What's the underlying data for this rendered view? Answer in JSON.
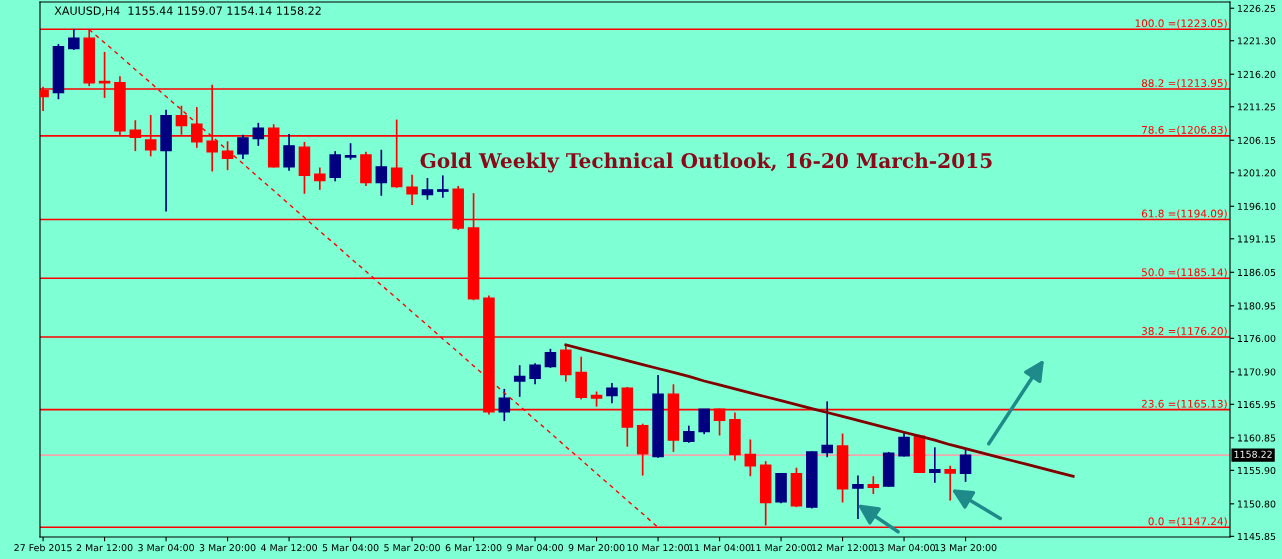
{
  "chart_data": {
    "type": "candlestick",
    "title": "Gold Weekly Technical Outlook, 16-20 March-2015",
    "annotations": [
      "XAUUSD,H4  1155.44 1159.07 1154.14 1158.22",
      "1158.22"
    ],
    "categories": [
      "27 Feb 2015",
      null,
      null,
      null,
      "2 Mar 12:00",
      null,
      null,
      null,
      "3 Mar 04:00",
      null,
      null,
      null,
      "3 Mar 20:00",
      null,
      null,
      null,
      "4 Mar 12:00",
      null,
      null,
      null,
      "5 Mar 04:00",
      null,
      null,
      null,
      "5 Mar 20:00",
      null,
      null,
      null,
      "6 Mar 12:00",
      null,
      null,
      null,
      "9 Mar 04:00",
      null,
      null,
      null,
      "9 Mar 20:00",
      null,
      null,
      null,
      "10 Mar 12:00",
      null,
      null,
      null,
      "11 Mar 04:00",
      null,
      null,
      null,
      "11 Mar 20:00",
      null,
      null,
      null,
      "12 Mar 12:00",
      null,
      null,
      null,
      "13 Mar 04:00",
      null,
      null,
      null,
      "13 Mar 20:00",
      null,
      null,
      null,
      null,
      null,
      null,
      null,
      null,
      null,
      null,
      null,
      null,
      null,
      null,
      null,
      null,
      null
    ],
    "ohlc": [
      [
        1213.7,
        1214.3,
        1210.6,
        1212.8
      ],
      [
        1213.4,
        1220.8,
        1212.4,
        1220.4
      ],
      [
        1220.1,
        1223.1,
        1219.9,
        1221.7
      ],
      [
        1221.7,
        1223.05,
        1214.4,
        1214.9
      ],
      [
        1215.1,
        1219.6,
        1212.6,
        1214.9
      ],
      [
        1214.9,
        1215.9,
        1206.8,
        1207.6
      ],
      [
        1207.7,
        1209.2,
        1204.5,
        1206.6
      ],
      [
        1206.2,
        1210.0,
        1203.7,
        1204.7
      ],
      [
        1204.6,
        1210.8,
        1195.3,
        1209.9
      ],
      [
        1209.9,
        1211.4,
        1207.0,
        1208.4
      ],
      [
        1208.6,
        1211.2,
        1205.0,
        1205.9
      ],
      [
        1206.0,
        1214.6,
        1201.4,
        1204.4
      ],
      [
        1204.5,
        1206.0,
        1201.6,
        1203.4
      ],
      [
        1204.1,
        1207.0,
        1203.3,
        1206.5
      ],
      [
        1206.4,
        1208.8,
        1205.3,
        1208.0
      ],
      [
        1208.0,
        1208.6,
        1202.0,
        1202.1
      ],
      [
        1202.1,
        1207.1,
        1201.5,
        1205.3
      ],
      [
        1205.1,
        1205.9,
        1198.0,
        1200.8
      ],
      [
        1201.0,
        1202.0,
        1198.6,
        1200.0
      ],
      [
        1200.5,
        1204.5,
        1199.9,
        1203.9
      ],
      [
        1203.6,
        1205.7,
        1203.2,
        1203.8
      ],
      [
        1203.9,
        1204.4,
        1199.2,
        1199.7
      ],
      [
        1199.7,
        1204.7,
        1197.7,
        1202.1
      ],
      [
        1201.9,
        1209.3,
        1198.9,
        1199.1
      ],
      [
        1199.0,
        1200.9,
        1196.3,
        1198.0
      ],
      [
        1197.9,
        1200.4,
        1197.1,
        1198.6
      ],
      [
        1198.4,
        1200.8,
        1197.4,
        1198.6
      ],
      [
        1198.7,
        1199.2,
        1192.5,
        1192.8
      ],
      [
        1192.8,
        1198.1,
        1181.8,
        1182.0
      ],
      [
        1182.1,
        1182.5,
        1164.4,
        1164.8
      ],
      [
        1164.8,
        1168.3,
        1163.4,
        1166.9
      ],
      [
        1169.5,
        1171.9,
        1167.1,
        1170.2
      ],
      [
        1169.9,
        1172.2,
        1169.0,
        1171.9
      ],
      [
        1171.7,
        1174.4,
        1171.5,
        1173.8
      ],
      [
        1174.2,
        1175.0,
        1169.4,
        1170.5
      ],
      [
        1170.8,
        1173.2,
        1166.7,
        1167.0
      ],
      [
        1167.3,
        1167.9,
        1165.6,
        1166.9
      ],
      [
        1167.3,
        1169.2,
        1166.1,
        1168.4
      ],
      [
        1168.4,
        1168.6,
        1159.5,
        1162.5
      ],
      [
        1162.7,
        1163.0,
        1155.1,
        1158.4
      ],
      [
        1158.0,
        1170.4,
        1157.8,
        1167.5
      ],
      [
        1167.5,
        1169.0,
        1158.7,
        1160.5
      ],
      [
        1160.3,
        1162.7,
        1160.1,
        1161.8
      ],
      [
        1161.8,
        1165.2,
        1161.4,
        1165.2
      ],
      [
        1165.2,
        1165.3,
        1161.2,
        1163.5
      ],
      [
        1163.6,
        1164.7,
        1157.4,
        1158.3
      ],
      [
        1158.3,
        1160.6,
        1155.0,
        1156.6
      ],
      [
        1156.7,
        1157.3,
        1147.5,
        1151.0
      ],
      [
        1151.1,
        1155.5,
        1150.9,
        1155.4
      ],
      [
        1155.4,
        1156.3,
        1150.3,
        1150.5
      ],
      [
        1150.3,
        1158.8,
        1150.1,
        1158.7
      ],
      [
        1158.6,
        1166.4,
        1157.9,
        1159.7
      ],
      [
        1159.6,
        1161.5,
        1151.0,
        1153.1
      ],
      [
        1153.2,
        1155.1,
        1148.5,
        1153.7
      ],
      [
        1153.7,
        1155.0,
        1152.3,
        1153.3
      ],
      [
        1153.5,
        1158.7,
        1153.4,
        1158.5
      ],
      [
        1158.1,
        1161.6,
        1158.0,
        1160.9
      ],
      [
        1161.1,
        1161.3,
        1155.5,
        1155.6
      ],
      [
        1155.6,
        1159.4,
        1154.0,
        1156.0
      ],
      [
        1156.0,
        1156.6,
        1151.3,
        1155.5
      ],
      [
        1155.44,
        1159.07,
        1154.14,
        1158.22
      ],
      null,
      null,
      null,
      null,
      null,
      null,
      null,
      null,
      null,
      null,
      null,
      null,
      null,
      null,
      null,
      null,
      null
    ],
    "colors": [
      "#ff0000",
      "#000080",
      "#000080",
      "#ff0000",
      "#ff0000",
      "#ff0000",
      "#ff0000",
      "#ff0000",
      "#000080",
      "#ff0000",
      "#ff0000",
      "#ff0000",
      "#ff0000",
      "#000080",
      "#000080",
      "#ff0000",
      "#000080",
      "#ff0000",
      "#ff0000",
      "#000080",
      "#000080",
      "#ff0000",
      "#000080",
      "#ff0000",
      "#ff0000",
      "#000080",
      "#000080",
      "#ff0000",
      "#ff0000",
      "#ff0000",
      "#000080",
      "#000080",
      "#000080",
      "#000080",
      "#ff0000",
      "#ff0000",
      "#ff0000",
      "#000080",
      "#ff0000",
      "#ff0000",
      "#000080",
      "#ff0000",
      "#000080",
      "#000080",
      "#ff0000",
      "#ff0000",
      "#ff0000",
      "#ff0000",
      "#000080",
      "#ff0000",
      "#000080",
      "#000080",
      "#ff0000",
      "#000080",
      "#ff0000",
      "#000080",
      "#000080",
      "#ff0000",
      "#000080",
      "#ff0000",
      "#000080",
      null,
      null,
      null,
      null,
      null,
      null,
      null,
      null,
      null,
      null,
      null,
      null,
      null,
      null,
      null,
      null,
      null
    ],
    "series": [
      {
        "type": "line",
        "color": "#ff0000",
        "line_style": "dashed",
        "values": [
          null,
          null,
          null,
          1223.0,
          1221.0,
          1219.0,
          1216.9,
          1214.9,
          1212.8,
          1210.8,
          1208.7,
          1206.7,
          1204.6,
          1202.6,
          1200.5,
          1198.5,
          1196.4,
          1194.4,
          1192.3,
          1190.3,
          1188.2,
          1186.2,
          1184.1,
          1182.1,
          1180.0,
          1178.0,
          1175.9,
          1173.9,
          1171.8,
          1169.8,
          1167.7,
          1165.7,
          1163.6,
          1161.6,
          1159.5,
          1157.5,
          1155.4,
          1153.4,
          1151.3,
          1149.3,
          1147.2,
          null,
          null,
          null,
          null,
          null,
          null,
          null,
          null,
          null,
          null,
          null,
          null,
          null,
          null,
          null,
          null,
          null,
          null,
          null,
          null,
          null,
          null,
          null,
          null,
          null,
          null,
          null,
          null,
          null,
          null,
          null,
          null,
          null,
          null,
          null,
          null,
          null
        ]
      },
      {
        "type": "line",
        "color": "#800000",
        "line_style": "solid",
        "values": [
          null,
          null,
          null,
          null,
          null,
          null,
          null,
          null,
          null,
          null,
          null,
          null,
          null,
          null,
          null,
          null,
          null,
          null,
          null,
          null,
          null,
          null,
          null,
          null,
          null,
          null,
          null,
          null,
          null,
          null,
          null,
          null,
          null,
          null,
          1175.0,
          1174.4,
          1173.8,
          1173.2,
          1172.6,
          1172.0,
          1171.4,
          1170.8,
          1170.2,
          1169.5,
          1168.9,
          1168.3,
          1167.7,
          1167.1,
          1166.5,
          1165.9,
          1165.3,
          1164.7,
          1164.1,
          1163.5,
          1162.9,
          1162.3,
          1161.7,
          1161.1,
          1160.5,
          1159.8,
          1159.2,
          1158.6,
          1158.0,
          1157.4,
          1156.8,
          1156.2,
          1155.6,
          1155.0,
          null,
          null,
          null,
          null,
          null,
          null,
          null,
          null,
          null,
          null
        ]
      }
    ],
    "ref_lines": [
      {
        "axis": "y",
        "value": 1223.05,
        "label": "100.0 =(1223.05)",
        "color": "#ff0000"
      },
      {
        "axis": "y",
        "value": 1213.95,
        "label": "88.2 =(1213.95)",
        "color": "#ff0000"
      },
      {
        "axis": "y",
        "value": 1206.83,
        "label": "78.6 =(1206.83)",
        "color": "#ff0000"
      },
      {
        "axis": "y",
        "value": 1194.09,
        "label": "61.8 =(1194.09)",
        "color": "#ff0000"
      },
      {
        "axis": "y",
        "value": 1185.14,
        "label": "50.0 =(1185.14)",
        "color": "#ff0000"
      },
      {
        "axis": "y",
        "value": 1176.2,
        "label": "38.2 =(1176.20)",
        "color": "#ff0000"
      },
      {
        "axis": "y",
        "value": 1165.13,
        "label": "23.6 =(1165.13)",
        "color": "#ff0000"
      },
      {
        "axis": "y",
        "value": 1147.24,
        "label": "0.0 =(1147.24)",
        "color": "#ff0000"
      },
      {
        "axis": "y",
        "value": 1158.22,
        "color": "#f0a8b0"
      }
    ],
    "ylim": [
      1145.75,
      1227.2
    ],
    "yticks": [
      1226.25,
      {
        "value": 1221.3,
        "label": "1221.30"
      },
      {
        "value": 1216.2,
        "label": "1216.20"
      },
      1211.25,
      1206.15,
      {
        "value": 1201.2,
        "label": "1201.20"
      },
      {
        "value": 1196.1,
        "label": "1196.10"
      },
      1191.15,
      1186.05,
      1180.95,
      {
        "value": 1176.0,
        "label": "1176.00"
      },
      {
        "value": 1170.9,
        "label": "1170.90"
      },
      1165.95,
      1160.85,
      {
        "value": 1155.9,
        "label": "1155.90"
      },
      {
        "value": 1150.8,
        "label": "1150.80"
      },
      1145.85
    ]
  }
}
